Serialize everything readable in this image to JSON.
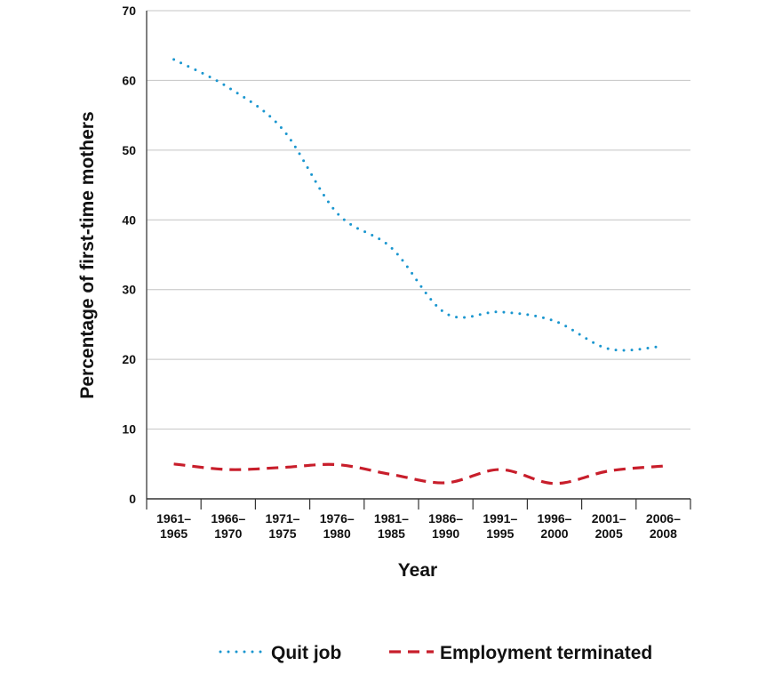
{
  "chart_data": {
    "type": "line",
    "title": "",
    "xlabel": "Year",
    "ylabel": "Percentage of first-time mothers",
    "ylim": [
      0,
      70
    ],
    "yticks": [
      0,
      10,
      20,
      30,
      40,
      50,
      60,
      70
    ],
    "grid": true,
    "legend_position": "bottom",
    "categories": [
      [
        "1961–",
        "1965"
      ],
      [
        "1966–",
        "1970"
      ],
      [
        "1971–",
        "1975"
      ],
      [
        "1976–",
        "1980"
      ],
      [
        "1981–",
        "1985"
      ],
      [
        "1986–",
        "1990"
      ],
      [
        "1991–",
        "1995"
      ],
      [
        "1996–",
        "2000"
      ],
      [
        "2001–",
        "2005"
      ],
      [
        "2006–",
        "2008"
      ]
    ],
    "series": [
      {
        "name": "Quit job",
        "color": "#1a96cf",
        "style": "dotted",
        "values": [
          63.0,
          59.0,
          53.0,
          41.0,
          36.0,
          26.6,
          26.8,
          25.5,
          21.5,
          21.9
        ]
      },
      {
        "name": "Employment terminated",
        "color": "#c81e2b",
        "style": "dashed",
        "values": [
          5.0,
          4.2,
          4.5,
          4.9,
          3.5,
          2.3,
          4.2,
          2.2,
          4.0,
          4.7
        ]
      }
    ]
  }
}
